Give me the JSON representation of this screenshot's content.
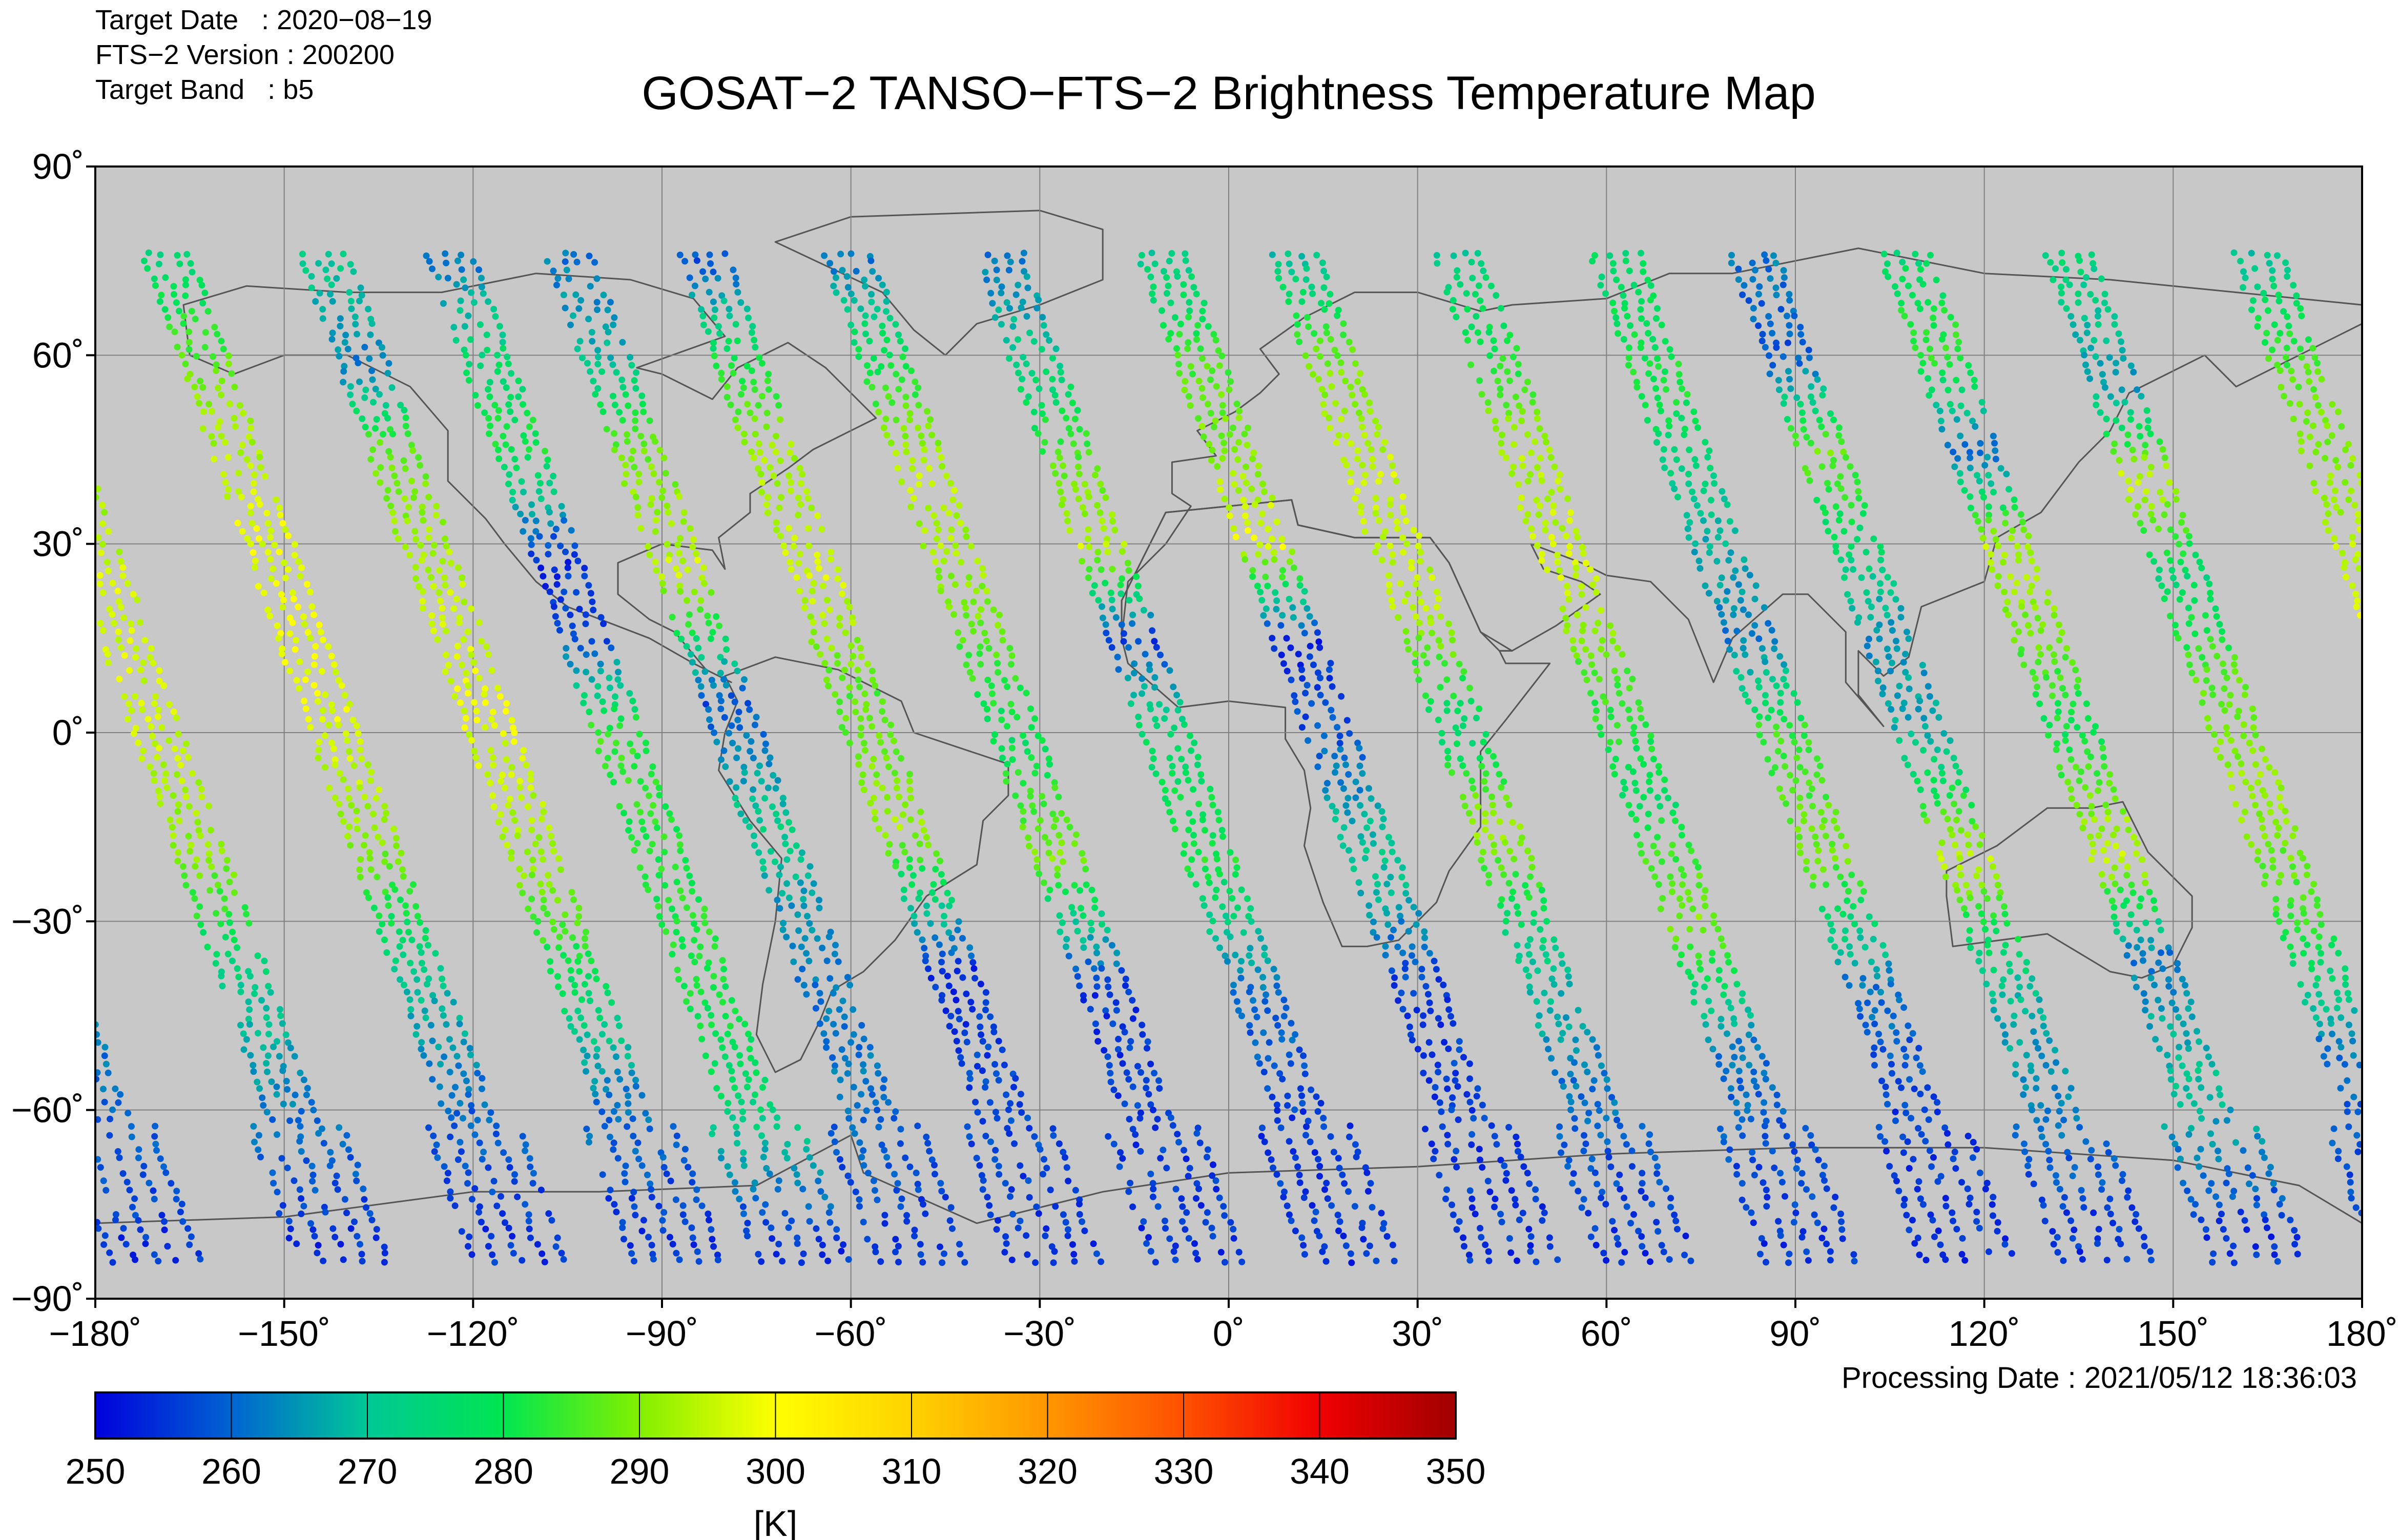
{
  "header": {
    "target_date": "Target Date   : 2020−08−19",
    "fts_version": "FTS−2 Version : 200200",
    "target_band": "Target Band   : b5",
    "title": "GOSAT−2 TANSO−FTS−2 Brightness Temperature Map"
  },
  "footer": {
    "processing_date": "Processing Date : 2021/05/12 18:36:03"
  },
  "chart_data": {
    "type": "scatter",
    "projection": "equirectangular",
    "background_color": "#c8c8c8",
    "coastline_color": "#555555",
    "grid": true,
    "xlim": [
      -180,
      180
    ],
    "ylim": [
      -90,
      90
    ],
    "x_ticks": [
      "−180˚",
      "−150˚",
      "−120˚",
      "−90˚",
      "−60˚",
      "−30˚",
      "0˚",
      "30˚",
      "60˚",
      "90˚",
      "120˚",
      "150˚",
      "180˚"
    ],
    "x_tick_values": [
      -180,
      -150,
      -120,
      -90,
      -60,
      -30,
      0,
      30,
      60,
      90,
      120,
      150,
      180
    ],
    "y_ticks": [
      "90˚",
      "60˚",
      "30˚",
      "0˚",
      "−30˚",
      "−60˚",
      "−90˚"
    ],
    "y_tick_values": [
      90,
      60,
      30,
      0,
      -30,
      -60,
      -90
    ],
    "colorbar": {
      "min": 250,
      "max": 350,
      "unit": "[K]",
      "tick_labels": [
        "250",
        "260",
        "270",
        "280",
        "290",
        "300",
        "310",
        "320",
        "330",
        "340",
        "350"
      ],
      "colors": [
        "#0000dc",
        "#0064d2",
        "#00c896",
        "#00e650",
        "#82f000",
        "#ffff00",
        "#ffd200",
        "#ff9600",
        "#ff5000",
        "#f00000",
        "#a00000"
      ]
    },
    "swaths": [
      {
        "lon_equator": -170,
        "tb_profile": [
          [
            75,
            270
          ],
          [
            60,
            285
          ],
          [
            40,
            292
          ],
          [
            20,
            297
          ],
          [
            0,
            296
          ],
          [
            -20,
            290
          ],
          [
            -40,
            272
          ],
          [
            -60,
            262
          ],
          [
            -80,
            255
          ]
        ]
      },
      {
        "lon_equator": -142,
        "tb_profile": [
          [
            75,
            275
          ],
          [
            55,
            290
          ],
          [
            30,
            298
          ],
          [
            5,
            298
          ],
          [
            -15,
            292
          ],
          [
            -40,
            270
          ],
          [
            -60,
            260
          ],
          [
            -80,
            255
          ]
        ]
      },
      {
        "lon_equator": -117,
        "tb_profile": [
          [
            75,
            272
          ],
          [
            58,
            262
          ],
          [
            45,
            288
          ],
          [
            25,
            294
          ],
          [
            5,
            298
          ],
          [
            -20,
            292
          ],
          [
            -40,
            278
          ],
          [
            -58,
            262
          ],
          [
            -80,
            255
          ]
        ]
      },
      {
        "lon_equator": -97,
        "tb_profile": [
          [
            75,
            262
          ],
          [
            60,
            275
          ],
          [
            45,
            282
          ],
          [
            28,
            254
          ],
          [
            15,
            258
          ],
          [
            0,
            284
          ],
          [
            -20,
            282
          ],
          [
            -38,
            282
          ],
          [
            -58,
            276
          ],
          [
            -80,
            255
          ]
        ]
      },
      {
        "lon_equator": -78,
        "tb_profile": [
          [
            75,
            262
          ],
          [
            60,
            268
          ],
          [
            45,
            288
          ],
          [
            25,
            296
          ],
          [
            5,
            258
          ],
          [
            -15,
            272
          ],
          [
            -35,
            262
          ],
          [
            -55,
            262
          ],
          [
            -80,
            255
          ]
        ]
      },
      {
        "lon_equator": -57,
        "tb_profile": [
          [
            75,
            258
          ],
          [
            60,
            280
          ],
          [
            45,
            292
          ],
          [
            25,
            296
          ],
          [
            5,
            286
          ],
          [
            -15,
            292
          ],
          [
            -38,
            254
          ],
          [
            -60,
            258
          ],
          [
            -80,
            255
          ]
        ]
      },
      {
        "lon_equator": -34,
        "tb_profile": [
          [
            75,
            262
          ],
          [
            60,
            280
          ],
          [
            40,
            295
          ],
          [
            20,
            290
          ],
          [
            0,
            278
          ],
          [
            -20,
            290
          ],
          [
            -40,
            255
          ],
          [
            -60,
            256
          ],
          [
            -80,
            255
          ]
        ]
      },
      {
        "lon_equator": -10,
        "tb_profile": [
          [
            75,
            262
          ],
          [
            60,
            272
          ],
          [
            45,
            284
          ],
          [
            30,
            296
          ],
          [
            15,
            256
          ],
          [
            0,
            276
          ],
          [
            -20,
            282
          ],
          [
            -40,
            262
          ],
          [
            -60,
            256
          ],
          [
            -80,
            255
          ]
        ]
      },
      {
        "lon_equator": 16,
        "tb_profile": [
          [
            75,
            272
          ],
          [
            60,
            285
          ],
          [
            45,
            290
          ],
          [
            30,
            298
          ],
          [
            15,
            254
          ],
          [
            0,
            258
          ],
          [
            -20,
            272
          ],
          [
            -40,
            256
          ],
          [
            -60,
            256
          ],
          [
            -80,
            255
          ]
        ]
      },
      {
        "lon_equator": 37,
        "tb_profile": [
          [
            75,
            270
          ],
          [
            60,
            288
          ],
          [
            40,
            296
          ],
          [
            20,
            294
          ],
          [
            0,
            275
          ],
          [
            -15,
            292
          ],
          [
            -35,
            272
          ],
          [
            -55,
            262
          ],
          [
            -80,
            255
          ]
        ]
      },
      {
        "lon_equator": 63,
        "tb_profile": [
          [
            75,
            272
          ],
          [
            60,
            282
          ],
          [
            45,
            293
          ],
          [
            25,
            296
          ],
          [
            10,
            286
          ],
          [
            -10,
            278
          ],
          [
            -30,
            290
          ],
          [
            -50,
            262
          ],
          [
            -80,
            255
          ]
        ]
      },
      {
        "lon_equator": 88,
        "tb_profile": [
          [
            75,
            276
          ],
          [
            55,
            282
          ],
          [
            35,
            270
          ],
          [
            15,
            262
          ],
          [
            0,
            284
          ],
          [
            -20,
            288
          ],
          [
            -40,
            262
          ],
          [
            -60,
            256
          ],
          [
            -80,
            255
          ]
        ]
      },
      {
        "lon_equator": 110,
        "tb_profile": [
          [
            75,
            262
          ],
          [
            60,
            258
          ],
          [
            45,
            288
          ],
          [
            30,
            276
          ],
          [
            15,
            264
          ],
          [
            0,
            268
          ],
          [
            -20,
            294
          ],
          [
            -40,
            270
          ],
          [
            -60,
            262
          ],
          [
            -80,
            255
          ]
        ]
      },
      {
        "lon_equator": 134,
        "tb_profile": [
          [
            75,
            276
          ],
          [
            60,
            285
          ],
          [
            45,
            260
          ],
          [
            30,
            294
          ],
          [
            15,
            288
          ],
          [
            0,
            280
          ],
          [
            -20,
            296
          ],
          [
            -35,
            262
          ],
          [
            -55,
            270
          ],
          [
            -80,
            255
          ]
        ]
      },
      {
        "lon_equator": 160,
        "tb_profile": [
          [
            75,
            274
          ],
          [
            55,
            266
          ],
          [
            40,
            296
          ],
          [
            25,
            275
          ],
          [
            10,
            286
          ],
          [
            -10,
            292
          ],
          [
            -30,
            284
          ],
          [
            -50,
            262
          ],
          [
            -80,
            255
          ]
        ]
      }
    ]
  }
}
